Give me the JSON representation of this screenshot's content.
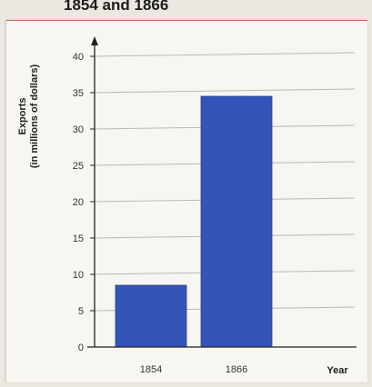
{
  "chart_data": {
    "type": "bar",
    "title": "1854 and 1866",
    "categories": [
      "1854",
      "1866"
    ],
    "values": [
      8.5,
      34.5
    ],
    "ylabel_line1": "Exports",
    "ylabel_line2": "(in millions of dollars)",
    "xlabel": "Year",
    "ylim": [
      0,
      40
    ],
    "yticks": [
      0,
      5,
      10,
      15,
      20,
      25,
      30,
      35,
      40
    ],
    "grid": true,
    "bar_color": "#3554b8"
  }
}
